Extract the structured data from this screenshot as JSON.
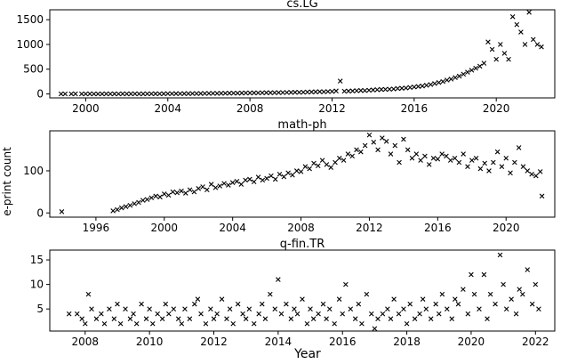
{
  "figure": {
    "ylabel": "e-print count",
    "xlabel": "Year",
    "marker": "x",
    "marker_color": "#000000"
  },
  "chart_data": [
    {
      "type": "scatter",
      "title": "cs.LG",
      "xlim": [
        1998.25,
        2022.85
      ],
      "ylim": [
        -80,
        1700
      ],
      "xticks": [
        2000,
        2004,
        2008,
        2012,
        2016,
        2020
      ],
      "yticks": [
        0,
        500,
        1000,
        1500
      ],
      "grid": false,
      "series": [
        {
          "x": [
            1998.8,
            1999.0,
            1999.3,
            1999.5,
            1999.8,
            2000.0,
            2000.2,
            2000.4,
            2000.6,
            2000.8,
            2001.0,
            2001.2,
            2001.4,
            2001.6,
            2001.8,
            2002.0,
            2002.2,
            2002.4,
            2002.6,
            2002.8,
            2003.0,
            2003.2,
            2003.4,
            2003.6,
            2003.8,
            2004.0,
            2004.2,
            2004.4,
            2004.6,
            2004.8,
            2005.0,
            2005.2,
            2005.4,
            2005.6,
            2005.8,
            2006.0,
            2006.2,
            2006.4,
            2006.6,
            2006.8,
            2007.0,
            2007.2,
            2007.4,
            2007.6,
            2007.8,
            2008.0,
            2008.2,
            2008.4,
            2008.6,
            2008.8,
            2009.0,
            2009.2,
            2009.4,
            2009.6,
            2009.8,
            2010.0,
            2010.2,
            2010.4,
            2010.6,
            2010.8,
            2011.0,
            2011.2,
            2011.4,
            2011.6,
            2011.8,
            2012.0,
            2012.2,
            2012.4,
            2012.6,
            2012.8,
            2013.0,
            2013.2,
            2013.4,
            2013.6,
            2013.8,
            2014.0,
            2014.2,
            2014.4,
            2014.6,
            2014.8,
            2015.0,
            2015.2,
            2015.4,
            2015.6,
            2015.8,
            2016.0,
            2016.2,
            2016.4,
            2016.6,
            2016.8,
            2017.0,
            2017.2,
            2017.4,
            2017.6,
            2017.8,
            2018.0,
            2018.2,
            2018.4,
            2018.6,
            2018.8,
            2019.0,
            2019.2,
            2019.4,
            2019.6,
            2019.8,
            2020.0,
            2020.2,
            2020.4,
            2020.6,
            2020.8,
            2021.0,
            2021.2,
            2021.4,
            2021.6,
            2021.8,
            2022.0,
            2022.2
          ],
          "y": [
            1,
            1,
            1,
            2,
            1,
            1,
            2,
            1,
            1,
            1,
            2,
            1,
            2,
            1,
            3,
            2,
            2,
            3,
            2,
            2,
            3,
            3,
            4,
            3,
            4,
            5,
            5,
            6,
            5,
            6,
            7,
            8,
            8,
            9,
            10,
            11,
            12,
            11,
            13,
            14,
            15,
            17,
            16,
            18,
            20,
            20,
            22,
            21,
            23,
            25,
            24,
            26,
            27,
            28,
            30,
            31,
            33,
            32,
            35,
            38,
            40,
            43,
            45,
            44,
            48,
            50,
            60,
            260,
            55,
            58,
            60,
            65,
            70,
            68,
            75,
            80,
            85,
            90,
            92,
            95,
            100,
            110,
            115,
            120,
            130,
            140,
            150,
            160,
            175,
            190,
            210,
            230,
            250,
            280,
            300,
            330,
            360,
            400,
            440,
            480,
            520,
            560,
            620,
            1050,
            900,
            700,
            1000,
            820,
            700,
            1560,
            1400,
            1250,
            1000,
            1650,
            1100,
            1000,
            950
          ]
        }
      ]
    },
    {
      "type": "scatter",
      "title": "math-ph",
      "xlim": [
        1993.3,
        2022.85
      ],
      "ylim": [
        -10,
        195
      ],
      "xticks": [
        1996,
        2000,
        2004,
        2008,
        2012,
        2016,
        2020
      ],
      "yticks": [
        0,
        100
      ],
      "grid": false,
      "series": [
        {
          "x": [
            1994.0,
            1997.0,
            1997.25,
            1997.5,
            1997.75,
            1998.0,
            1998.25,
            1998.5,
            1998.75,
            1999.0,
            1999.25,
            1999.5,
            1999.75,
            2000.0,
            2000.25,
            2000.5,
            2000.75,
            2001.0,
            2001.25,
            2001.5,
            2001.75,
            2002.0,
            2002.25,
            2002.5,
            2002.75,
            2003.0,
            2003.25,
            2003.5,
            2003.75,
            2004.0,
            2004.25,
            2004.5,
            2004.75,
            2005.0,
            2005.25,
            2005.5,
            2005.75,
            2006.0,
            2006.25,
            2006.5,
            2006.75,
            2007.0,
            2007.25,
            2007.5,
            2007.75,
            2008.0,
            2008.25,
            2008.5,
            2008.75,
            2009.0,
            2009.25,
            2009.5,
            2009.75,
            2010.0,
            2010.25,
            2010.5,
            2010.75,
            2011.0,
            2011.25,
            2011.5,
            2011.75,
            2012.0,
            2012.25,
            2012.5,
            2012.75,
            2013.0,
            2013.25,
            2013.5,
            2013.75,
            2014.0,
            2014.25,
            2014.5,
            2014.75,
            2015.0,
            2015.25,
            2015.5,
            2015.75,
            2016.0,
            2016.25,
            2016.5,
            2016.75,
            2017.0,
            2017.25,
            2017.5,
            2017.75,
            2018.0,
            2018.25,
            2018.5,
            2018.75,
            2019.0,
            2019.25,
            2019.5,
            2019.75,
            2020.0,
            2020.25,
            2020.5,
            2020.75,
            2021.0,
            2021.25,
            2021.5,
            2021.75,
            2022.0,
            2022.1
          ],
          "y": [
            3,
            5,
            8,
            12,
            15,
            18,
            22,
            25,
            30,
            32,
            36,
            40,
            38,
            45,
            42,
            50,
            48,
            52,
            47,
            55,
            50,
            58,
            62,
            55,
            68,
            60,
            64,
            70,
            66,
            72,
            75,
            68,
            78,
            80,
            74,
            85,
            78,
            82,
            88,
            80,
            92,
            86,
            95,
            90,
            100,
            98,
            110,
            105,
            118,
            112,
            125,
            115,
            108,
            120,
            130,
            125,
            140,
            135,
            150,
            145,
            160,
            185,
            168,
            150,
            178,
            170,
            140,
            160,
            120,
            175,
            150,
            130,
            140,
            125,
            135,
            115,
            130,
            128,
            140,
            135,
            125,
            130,
            120,
            140,
            110,
            125,
            130,
            105,
            118,
            100,
            120,
            145,
            110,
            130,
            95,
            120,
            155,
            110,
            100,
            92,
            88,
            98,
            40
          ]
        }
      ]
    },
    {
      "type": "scatter",
      "title": "q-fin.TR",
      "xlim": [
        2006.9,
        2022.6
      ],
      "ylim": [
        0.5,
        17
      ],
      "xticks": [
        2008,
        2010,
        2012,
        2014,
        2016,
        2018,
        2020,
        2022
      ],
      "yticks": [
        5,
        10,
        15
      ],
      "grid": false,
      "series": [
        {
          "x": [
            2007.5,
            2007.75,
            2007.9,
            2008.0,
            2008.1,
            2008.2,
            2008.35,
            2008.5,
            2008.6,
            2008.75,
            2008.9,
            2009.0,
            2009.1,
            2009.25,
            2009.4,
            2009.5,
            2009.6,
            2009.75,
            2009.9,
            2010.0,
            2010.1,
            2010.25,
            2010.4,
            2010.5,
            2010.6,
            2010.75,
            2010.9,
            2011.0,
            2011.1,
            2011.25,
            2011.4,
            2011.5,
            2011.6,
            2011.75,
            2011.9,
            2012.0,
            2012.1,
            2012.25,
            2012.4,
            2012.5,
            2012.6,
            2012.75,
            2012.9,
            2013.0,
            2013.1,
            2013.25,
            2013.4,
            2013.5,
            2013.6,
            2013.75,
            2013.9,
            2014.0,
            2014.1,
            2014.25,
            2014.4,
            2014.5,
            2014.6,
            2014.75,
            2014.9,
            2015.0,
            2015.1,
            2015.25,
            2015.4,
            2015.5,
            2015.6,
            2015.75,
            2015.9,
            2016.0,
            2016.1,
            2016.25,
            2016.4,
            2016.5,
            2016.6,
            2016.75,
            2016.9,
            2017.0,
            2017.1,
            2017.25,
            2017.4,
            2017.5,
            2017.6,
            2017.75,
            2017.9,
            2018.0,
            2018.1,
            2018.25,
            2018.4,
            2018.5,
            2018.6,
            2018.75,
            2018.9,
            2019.0,
            2019.1,
            2019.25,
            2019.4,
            2019.5,
            2019.6,
            2019.75,
            2019.9,
            2020.0,
            2020.1,
            2020.25,
            2020.4,
            2020.5,
            2020.6,
            2020.75,
            2020.9,
            2021.0,
            2021.1,
            2021.25,
            2021.4,
            2021.5,
            2021.6,
            2021.75,
            2021.9,
            2022.0,
            2022.1
          ],
          "y": [
            4,
            4,
            3,
            2,
            8,
            5,
            3,
            4,
            2,
            5,
            3,
            6,
            2,
            5,
            3,
            4,
            2,
            6,
            3,
            5,
            2,
            4,
            3,
            6,
            4,
            5,
            3,
            2,
            5,
            3,
            6,
            7,
            4,
            2,
            5,
            3,
            4,
            7,
            3,
            5,
            2,
            6,
            4,
            3,
            5,
            2,
            4,
            6,
            3,
            8,
            5,
            11,
            4,
            6,
            3,
            5,
            4,
            7,
            2,
            5,
            3,
            4,
            6,
            3,
            5,
            2,
            7,
            4,
            10,
            5,
            3,
            6,
            2,
            8,
            4,
            1,
            3,
            4,
            5,
            3,
            7,
            4,
            5,
            2,
            6,
            3,
            4,
            7,
            5,
            3,
            6,
            4,
            8,
            5,
            3,
            7,
            6,
            9,
            4,
            12,
            8,
            5,
            12,
            3,
            8,
            6,
            16,
            10,
            5,
            7,
            4,
            9,
            8,
            13,
            6,
            10,
            5
          ]
        }
      ]
    }
  ]
}
